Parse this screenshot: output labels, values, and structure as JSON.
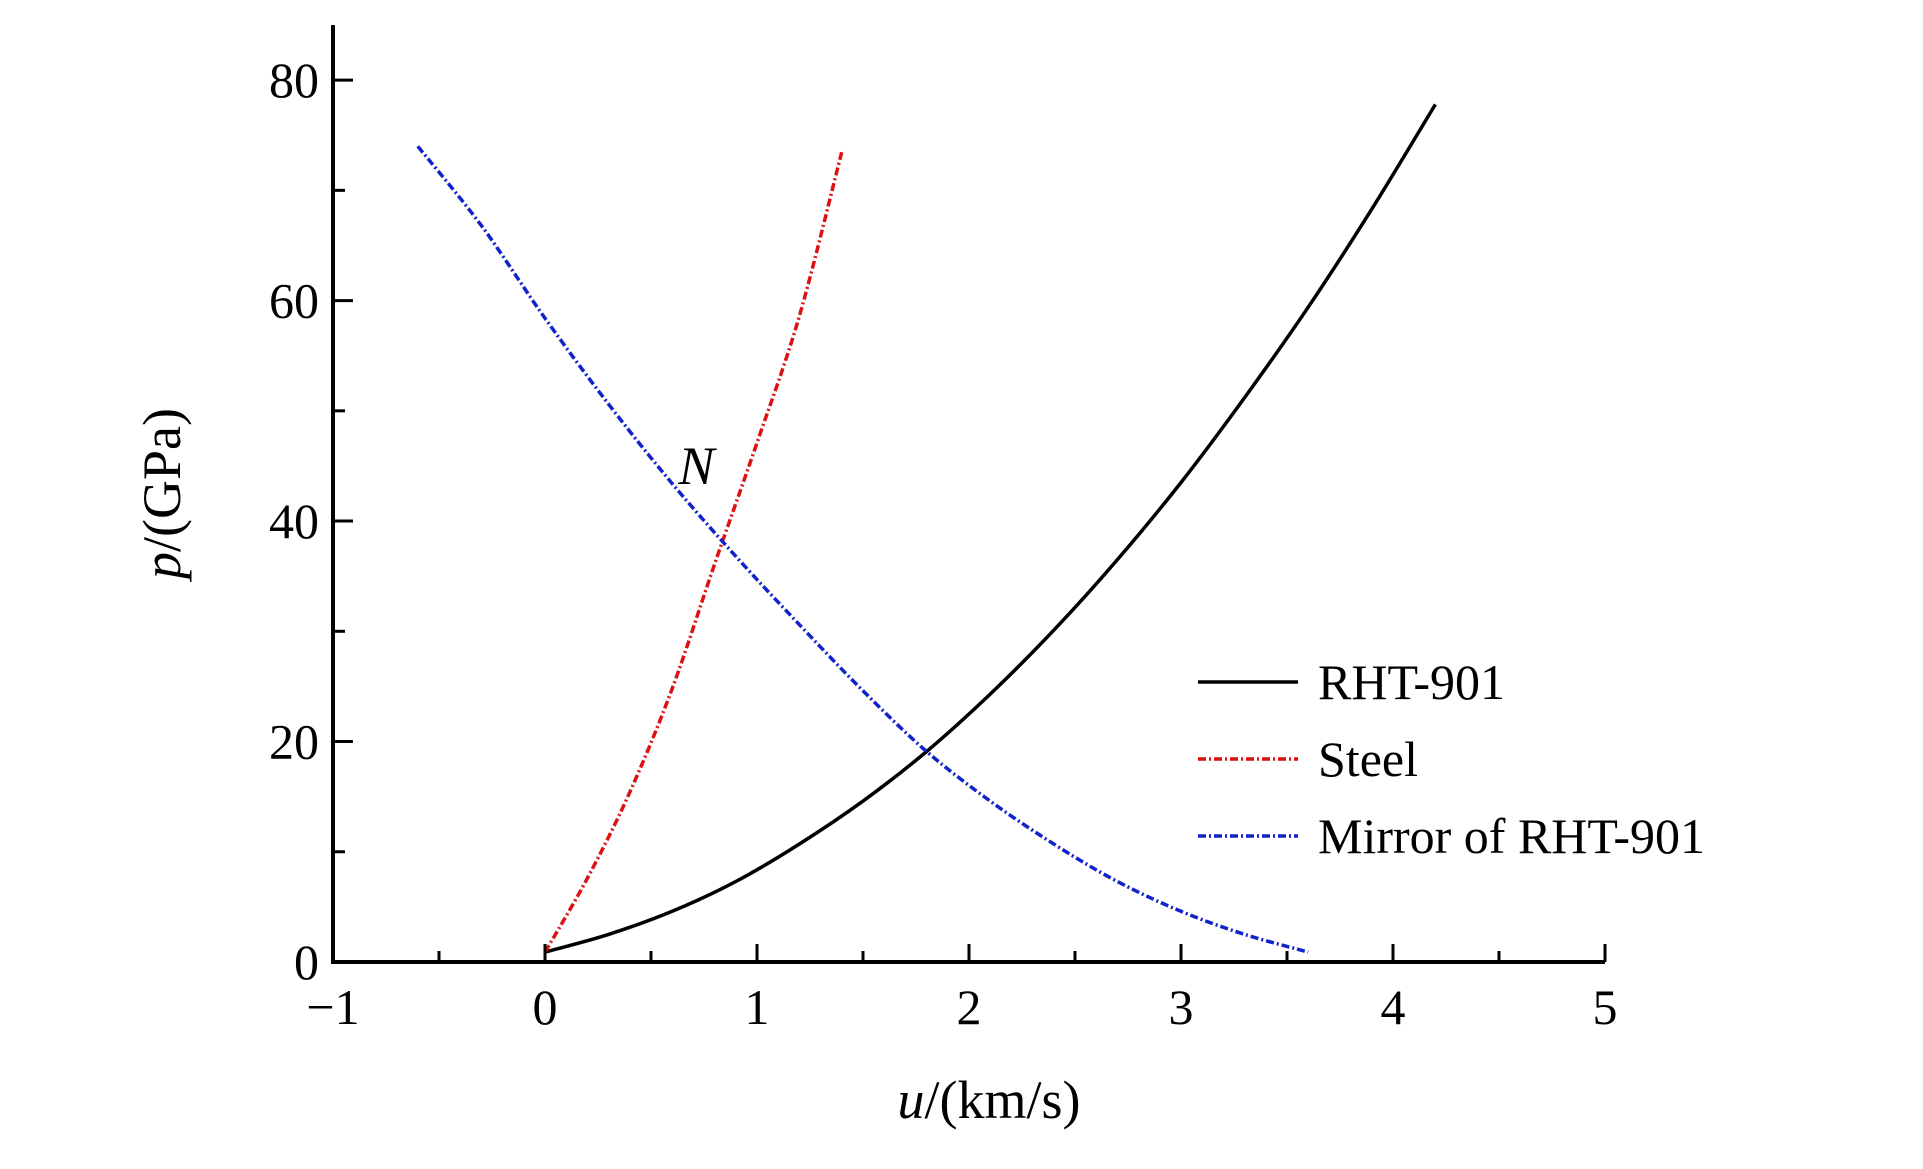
{
  "chart_data": {
    "type": "line",
    "title": "",
    "xlabel": {
      "symbol": "u",
      "unit": "/(km/s)"
    },
    "ylabel": {
      "symbol": "p",
      "unit": "/(GPa)"
    },
    "xlim": [
      -1,
      5
    ],
    "ylim": [
      0,
      85
    ],
    "xticks": [
      -1,
      0,
      1,
      2,
      3,
      4,
      5
    ],
    "xtick_labels": [
      "−1",
      "0",
      "1",
      "2",
      "3",
      "4",
      "5"
    ],
    "yticks": [
      0,
      20,
      40,
      60,
      80
    ],
    "ytick_labels": [
      "0",
      "20",
      "40",
      "60",
      "80"
    ],
    "y_minor_ticks": [
      10,
      30,
      50,
      70
    ],
    "x_minor_ticks": [
      -0.5,
      0.5,
      1.5,
      2.5,
      3.5,
      4.5
    ],
    "grid": false,
    "legend_position": "lower-right",
    "series": [
      {
        "name": "RHT-901",
        "color": "#000000",
        "style": "solid",
        "x": [
          0,
          0.3,
          0.6,
          0.9,
          1.2,
          1.5,
          1.8,
          2.1,
          2.4,
          2.7,
          3.0,
          3.3,
          3.6,
          3.9,
          4.2
        ],
        "y": [
          0.9,
          2.5,
          4.6,
          7.3,
          10.7,
          14.6,
          19.1,
          24.3,
          30.1,
          36.5,
          43.5,
          51.2,
          59.4,
          68.3,
          77.8
        ]
      },
      {
        "name": "Steel",
        "color": "#dd1111",
        "style": "dashdot",
        "x": [
          0,
          0.2,
          0.4,
          0.6,
          0.8,
          1.0,
          1.2,
          1.4
        ],
        "y": [
          0.9,
          7.6,
          15.4,
          24.8,
          36.1,
          47.1,
          58.6,
          73.5
        ]
      },
      {
        "name": "Mirror of RHT-901",
        "color": "#1122cc",
        "style": "dashdot",
        "x": [
          -0.6,
          -0.3,
          0,
          0.3,
          0.6,
          0.9,
          1.2,
          1.5,
          1.8,
          2.1,
          2.4,
          2.7,
          3.0,
          3.3,
          3.6
        ],
        "y": [
          74.0,
          66.8,
          58.4,
          50.6,
          43.4,
          36.8,
          30.6,
          24.6,
          19.1,
          14.6,
          10.7,
          7.3,
          4.6,
          2.5,
          0.9
        ]
      }
    ],
    "annotations": [
      {
        "text": "N",
        "x": 0.78,
        "y": 45
      }
    ]
  }
}
